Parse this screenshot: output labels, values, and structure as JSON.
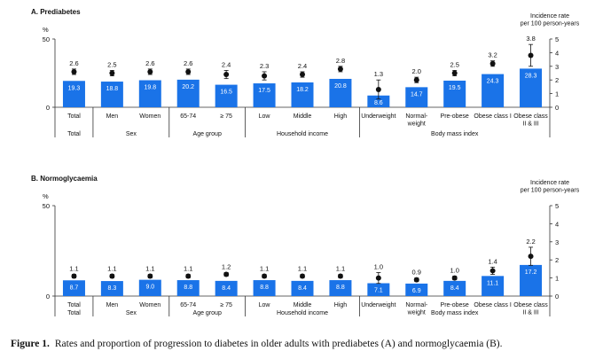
{
  "caption": {
    "label": "Figure 1.",
    "text": "Rates and proportion of progression to diabetes in older adults with prediabetes (A) and normoglycaemia (B)."
  },
  "colors": {
    "bar": "#1a73e8",
    "point": "#111111",
    "axis": "#333333"
  },
  "categories": [
    "Total",
    "Men",
    "Women",
    "65-74",
    "≥ 75",
    "Low",
    "Middle",
    "High",
    "Underweight",
    "Normal-\nweight",
    "Pre-obese",
    "Obese class I",
    "Obese class\nII & III"
  ],
  "groups": [
    {
      "label": "Total",
      "count": 1
    },
    {
      "label": "Sex",
      "count": 2
    },
    {
      "label": "Age group",
      "count": 2
    },
    {
      "label": "Household income",
      "count": 3
    },
    {
      "label": "Body mass index",
      "count": 5
    }
  ],
  "chart_data": [
    {
      "type": "bar",
      "title": "A. Prediabetes",
      "ylabel_left": "%",
      "ylabel_right": "Incidence rate\nper 100 person-years",
      "ylim_left": [
        0,
        50
      ],
      "left_ticks": [
        0,
        50
      ],
      "ylim_right": [
        0,
        5
      ],
      "right_ticks": [
        0,
        1,
        2,
        3,
        4,
        5
      ],
      "series": [
        {
          "name": "",
          "axis": "left",
          "values": [
            19.3,
            18.8,
            19.8,
            20.2,
            16.5,
            17.5,
            18.2,
            20.8,
            8.6,
            14.7,
            19.5,
            24.3,
            28.3
          ]
        },
        {
          "name": "",
          "axis": "right",
          "values": [
            2.6,
            2.5,
            2.6,
            2.6,
            2.4,
            2.3,
            2.4,
            2.8,
            1.3,
            2.0,
            2.5,
            3.2,
            3.8
          ],
          "ci_low": [
            2.4,
            2.3,
            2.4,
            2.4,
            2.1,
            2.0,
            2.2,
            2.6,
            0.6,
            1.8,
            2.3,
            3.0,
            3.0
          ],
          "ci_high": [
            2.8,
            2.7,
            2.8,
            2.8,
            2.7,
            2.6,
            2.6,
            3.0,
            2.0,
            2.2,
            2.7,
            3.4,
            4.6
          ]
        }
      ]
    },
    {
      "type": "bar",
      "title": "B. Normoglycaemia",
      "ylabel_left": "%",
      "ylabel_right": "Incidence rate\nper 100 person-years",
      "ylim_left": [
        0,
        50
      ],
      "left_ticks": [
        0,
        50
      ],
      "ylim_right": [
        0,
        5
      ],
      "right_ticks": [
        0,
        1,
        2,
        3,
        4,
        5
      ],
      "series": [
        {
          "name": "",
          "axis": "left",
          "values": [
            8.7,
            8.3,
            9.0,
            8.8,
            8.4,
            8.8,
            8.4,
            8.8,
            7.1,
            6.9,
            8.4,
            11.1,
            17.2
          ]
        },
        {
          "name": "",
          "axis": "right",
          "values": [
            1.1,
            1.1,
            1.1,
            1.1,
            1.2,
            1.1,
            1.1,
            1.1,
            1.0,
            0.9,
            1.0,
            1.4,
            2.2
          ],
          "ci_low": [
            1.0,
            1.0,
            1.0,
            1.0,
            1.1,
            1.0,
            1.0,
            1.0,
            0.7,
            0.8,
            0.9,
            1.2,
            1.7
          ],
          "ci_high": [
            1.2,
            1.2,
            1.2,
            1.2,
            1.3,
            1.2,
            1.2,
            1.2,
            1.3,
            1.0,
            1.1,
            1.6,
            2.7
          ]
        }
      ]
    }
  ]
}
